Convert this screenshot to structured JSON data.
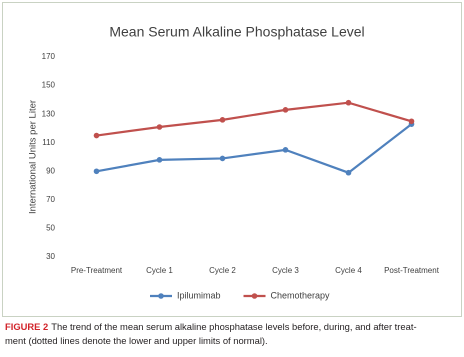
{
  "chart_data": {
    "type": "line",
    "title": "Mean Serum Alkaline Phosphatase Level",
    "y_label": "International Units per Liter",
    "categories": [
      "Pre-Treatment",
      "Cycle 1",
      "Cycle 2",
      "Cycle 3",
      "Cycle 4",
      "Post-Treatment"
    ],
    "series": [
      {
        "name": "Ipilumimab",
        "color": "#4f81bd",
        "values": [
          90,
          98,
          99,
          105,
          89,
          123
        ]
      },
      {
        "name": "Chemotherapy",
        "color": "#c0504d",
        "values": [
          115,
          121,
          126,
          133,
          138,
          125
        ]
      }
    ],
    "ylim": [
      30,
      170
    ],
    "yticks": [
      30,
      50,
      70,
      90,
      110,
      130,
      150,
      170
    ],
    "grid": false,
    "legend": "bottom"
  },
  "caption": {
    "label": "FIGURE 2",
    "lines": [
      "The trend of the mean serum alkaline phosphatase levels before, during, and after treat-",
      "ment (dotted lines denote the lower and upper limits of normal)."
    ]
  }
}
